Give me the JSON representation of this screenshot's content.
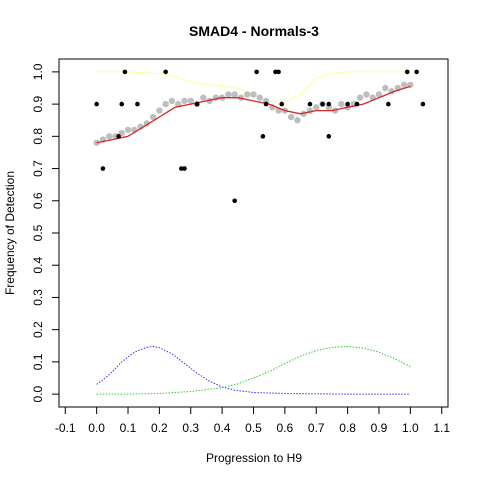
{
  "chart_data": {
    "type": "scatter",
    "title": "SMAD4 - Normals-3",
    "xlabel": "Progression to H9",
    "ylabel": "Frequency of Detection",
    "xlim": [
      -0.12,
      1.12
    ],
    "ylim": [
      -0.04,
      1.04
    ],
    "x_ticks": [
      -0.1,
      0.0,
      0.1,
      0.2,
      0.3,
      0.4,
      0.5,
      0.6,
      0.7,
      0.8,
      0.9,
      1.0,
      1.1
    ],
    "x_tick_labels": [
      "-0.1",
      "0.0",
      "0.1",
      "0.2",
      "0.3",
      "0.4",
      "0.5",
      "0.6",
      "0.7",
      "0.8",
      "0.9",
      "1.0",
      "1.1"
    ],
    "y_ticks": [
      0.0,
      0.1,
      0.2,
      0.3,
      0.4,
      0.5,
      0.6,
      0.7,
      0.8,
      0.9,
      1.0
    ],
    "y_tick_labels": [
      "0.0",
      "0.1",
      "0.2",
      "0.3",
      "0.4",
      "0.5",
      "0.6",
      "0.7",
      "0.8",
      "0.9",
      "1.0"
    ],
    "grid": false,
    "colors": {
      "points": "#000000",
      "smoothed": "#bebebe",
      "fit": "#d62728",
      "upper_band": "#ffff99",
      "blue_density": "#3333ff",
      "green_density": "#33cc33"
    },
    "series": [
      {
        "style": "black-points",
        "x": [
          0.0,
          0.02,
          0.07,
          0.08,
          0.09,
          0.13,
          0.22,
          0.27,
          0.28,
          0.32,
          0.44,
          0.51,
          0.53,
          0.54,
          0.57,
          0.58,
          0.59,
          0.68,
          0.72,
          0.74,
          0.74,
          0.8,
          0.83,
          0.93,
          0.99,
          1.02,
          1.04
        ],
        "y": [
          0.9,
          0.7,
          0.8,
          0.9,
          1.0,
          0.9,
          1.0,
          0.7,
          0.7,
          0.9,
          0.6,
          1.0,
          0.8,
          0.9,
          1.0,
          1.0,
          0.9,
          0.9,
          0.9,
          0.8,
          0.9,
          0.9,
          0.9,
          0.9,
          1.0,
          1.0,
          0.9
        ]
      },
      {
        "style": "grey-smoothed-points",
        "x": [
          0.0,
          0.02,
          0.04,
          0.06,
          0.08,
          0.1,
          0.12,
          0.14,
          0.16,
          0.18,
          0.2,
          0.22,
          0.24,
          0.26,
          0.28,
          0.3,
          0.32,
          0.34,
          0.36,
          0.38,
          0.4,
          0.42,
          0.44,
          0.46,
          0.48,
          0.5,
          0.52,
          0.54,
          0.56,
          0.58,
          0.6,
          0.62,
          0.64,
          0.66,
          0.68,
          0.7,
          0.72,
          0.74,
          0.76,
          0.78,
          0.8,
          0.82,
          0.84,
          0.86,
          0.88,
          0.9,
          0.92,
          0.94,
          0.96,
          0.98,
          1.0
        ],
        "y": [
          0.78,
          0.79,
          0.8,
          0.8,
          0.81,
          0.82,
          0.82,
          0.83,
          0.84,
          0.86,
          0.88,
          0.9,
          0.91,
          0.9,
          0.91,
          0.91,
          0.9,
          0.92,
          0.91,
          0.92,
          0.92,
          0.93,
          0.93,
          0.92,
          0.93,
          0.93,
          0.92,
          0.91,
          0.89,
          0.88,
          0.88,
          0.86,
          0.85,
          0.87,
          0.88,
          0.89,
          0.9,
          0.89,
          0.88,
          0.9,
          0.89,
          0.9,
          0.92,
          0.93,
          0.92,
          0.93,
          0.95,
          0.94,
          0.95,
          0.96,
          0.96
        ]
      },
      {
        "style": "red-fit-line",
        "x": [
          0.0,
          0.05,
          0.1,
          0.15,
          0.2,
          0.25,
          0.3,
          0.35,
          0.4,
          0.45,
          0.5,
          0.55,
          0.6,
          0.65,
          0.7,
          0.75,
          0.8,
          0.85,
          0.9,
          0.95,
          1.0
        ],
        "y": [
          0.78,
          0.79,
          0.8,
          0.83,
          0.86,
          0.89,
          0.9,
          0.91,
          0.92,
          0.92,
          0.91,
          0.9,
          0.88,
          0.87,
          0.88,
          0.88,
          0.89,
          0.9,
          0.92,
          0.94,
          0.955
        ]
      },
      {
        "style": "yellow-upper-band",
        "x": [
          0.0,
          0.1,
          0.2,
          0.25,
          0.3,
          0.35,
          0.4,
          0.45,
          0.5,
          0.55,
          0.6,
          0.65,
          0.7,
          0.75,
          0.8,
          0.9,
          1.0
        ],
        "y": [
          1.0,
          1.0,
          0.995,
          0.985,
          0.97,
          0.96,
          0.955,
          0.95,
          0.93,
          0.91,
          0.905,
          0.93,
          0.98,
          0.995,
          1.0,
          1.0,
          1.0
        ]
      },
      {
        "style": "blue-density",
        "x": [
          0.0,
          0.04,
          0.08,
          0.12,
          0.16,
          0.18,
          0.2,
          0.24,
          0.28,
          0.32,
          0.36,
          0.4,
          0.44,
          0.5,
          0.6,
          0.7,
          0.8,
          0.9,
          1.0
        ],
        "y": [
          0.03,
          0.06,
          0.1,
          0.13,
          0.145,
          0.148,
          0.144,
          0.125,
          0.095,
          0.065,
          0.04,
          0.022,
          0.012,
          0.005,
          0.002,
          0.001,
          0.0,
          0.0,
          0.0
        ]
      },
      {
        "style": "green-density",
        "x": [
          0.0,
          0.1,
          0.2,
          0.3,
          0.4,
          0.45,
          0.5,
          0.55,
          0.6,
          0.65,
          0.7,
          0.75,
          0.8,
          0.85,
          0.9,
          0.95,
          1.0
        ],
        "y": [
          0.0,
          0.0,
          0.002,
          0.008,
          0.02,
          0.032,
          0.05,
          0.07,
          0.095,
          0.118,
          0.135,
          0.145,
          0.148,
          0.143,
          0.13,
          0.11,
          0.085
        ]
      }
    ]
  }
}
